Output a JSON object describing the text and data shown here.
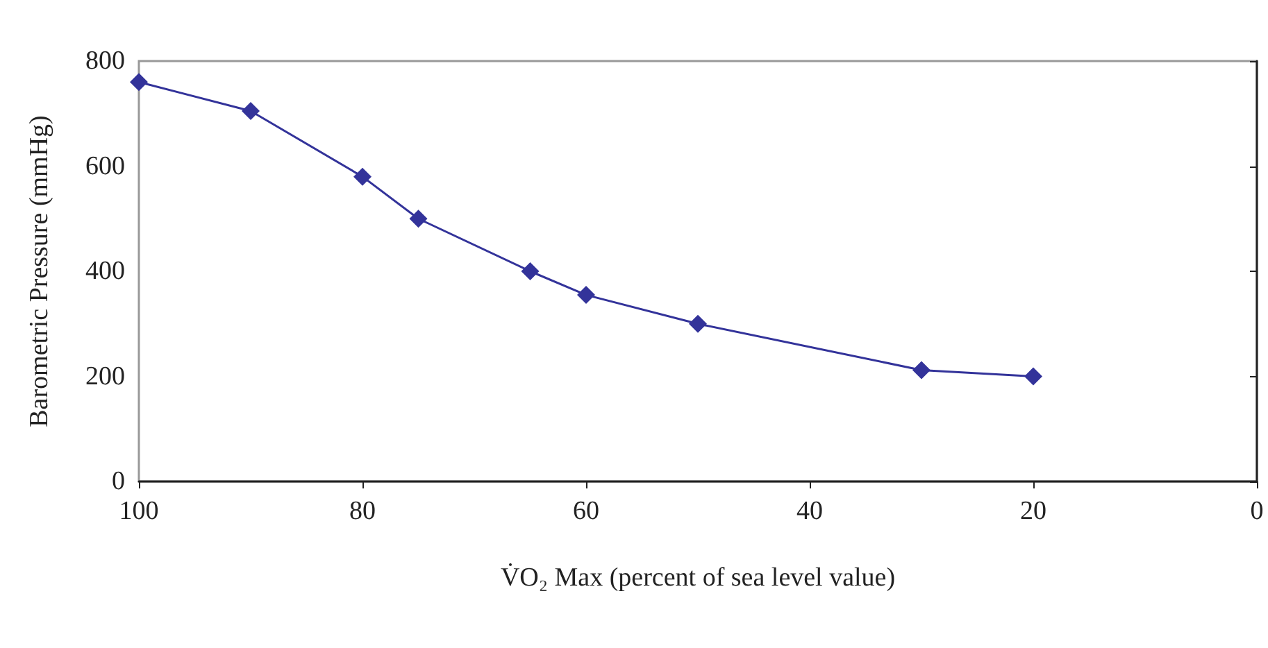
{
  "chart_data": {
    "type": "line",
    "xlabel": "V̇O₂ Max (percent of sea level value)",
    "ylabel": "Barometric Pressure (mmHg)",
    "x": [
      100,
      90,
      80,
      75,
      65,
      60,
      50,
      30,
      20
    ],
    "series": [
      {
        "color": "#33339a",
        "values": [
          760,
          705,
          580,
          500,
          400,
          355,
          300,
          212,
          200
        ]
      }
    ],
    "xlim": [
      100,
      0
    ],
    "xticks": [
      100,
      80,
      60,
      40,
      20,
      0
    ],
    "ylim": [
      0,
      800
    ],
    "yticks": [
      0,
      200,
      400,
      600,
      800
    ],
    "grid": false,
    "marker": "diamond",
    "line_style": "solid"
  }
}
